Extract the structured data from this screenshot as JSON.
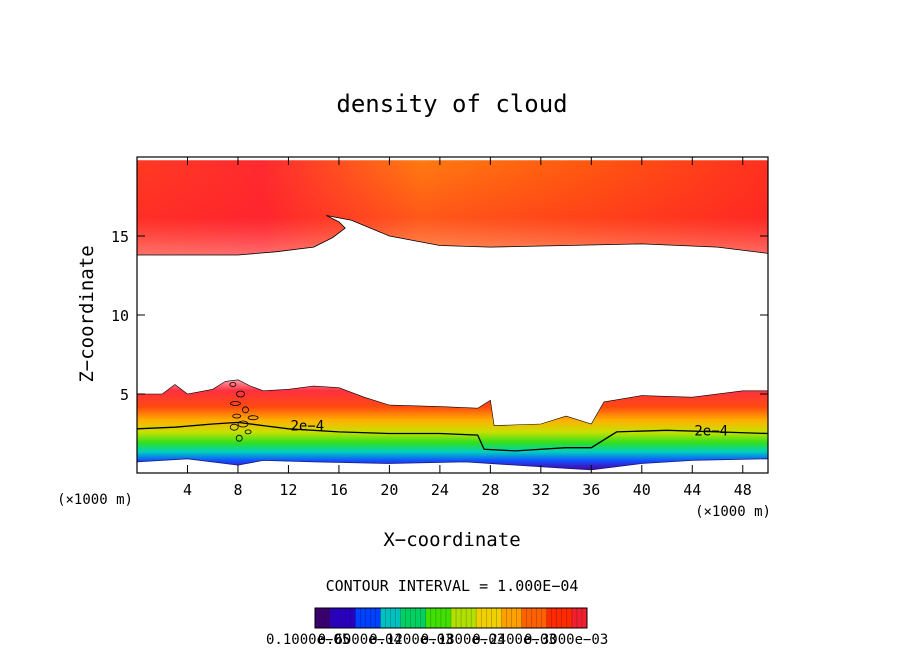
{
  "chart_data": {
    "type": "heatmap",
    "title": "density of cloud",
    "xlabel": "X−coordinate",
    "ylabel": "Z−coordinate",
    "x_unit_left": "(×1000 m)",
    "x_unit_right": "(×1000 m)",
    "xlim": [
      0,
      50
    ],
    "ylim": [
      0,
      20
    ],
    "x_ticks": [
      4,
      8,
      12,
      16,
      20,
      24,
      28,
      32,
      36,
      40,
      44,
      48
    ],
    "y_ticks": [
      5,
      10,
      15
    ],
    "contour_interval_text": "CONTOUR INTERVAL = 1.000E−04",
    "contour_labels": [
      {
        "text": "2e−4",
        "x": 13.5,
        "z": 3.0
      },
      {
        "text": "2e−4",
        "x": 45.5,
        "z": 2.7
      }
    ],
    "upper_layer": {
      "top": [
        [
          0,
          19.8
        ],
        [
          50,
          19.8
        ]
      ],
      "base": [
        [
          0,
          13.8
        ],
        [
          4,
          13.8
        ],
        [
          8,
          13.8
        ],
        [
          11,
          14.0
        ],
        [
          14,
          14.3
        ],
        [
          15.5,
          14.9
        ],
        [
          16.5,
          15.5
        ],
        [
          16,
          15.9
        ],
        [
          15,
          16.3
        ],
        [
          17,
          16.0
        ],
        [
          20,
          15.0
        ],
        [
          24,
          14.4
        ],
        [
          28,
          14.3
        ],
        [
          34,
          14.4
        ],
        [
          40,
          14.5
        ],
        [
          46,
          14.3
        ],
        [
          50,
          13.9
        ]
      ]
    },
    "lower_layer": {
      "top": [
        [
          0,
          5.0
        ],
        [
          2,
          5.0
        ],
        [
          3,
          5.6
        ],
        [
          4,
          5.0
        ],
        [
          6,
          5.3
        ],
        [
          7,
          5.8
        ],
        [
          8,
          5.9
        ],
        [
          9,
          5.5
        ],
        [
          10,
          5.2
        ],
        [
          12,
          5.3
        ],
        [
          14,
          5.5
        ],
        [
          16,
          5.4
        ],
        [
          18,
          4.8
        ],
        [
          20,
          4.3
        ],
        [
          24,
          4.2
        ],
        [
          27,
          4.1
        ],
        [
          28,
          4.6
        ],
        [
          28.3,
          3.0
        ],
        [
          32,
          3.1
        ],
        [
          34,
          3.6
        ],
        [
          36,
          3.1
        ],
        [
          37,
          4.5
        ],
        [
          40,
          4.9
        ],
        [
          44,
          4.8
        ],
        [
          48,
          5.2
        ],
        [
          50,
          5.2
        ]
      ],
      "bottom": [
        [
          0,
          0.7
        ],
        [
          4,
          0.9
        ],
        [
          8,
          0.5
        ],
        [
          10,
          0.8
        ],
        [
          14,
          0.7
        ],
        [
          20,
          0.6
        ],
        [
          26,
          0.7
        ],
        [
          30,
          0.5
        ],
        [
          34,
          0.3
        ],
        [
          36,
          0.2
        ],
        [
          40,
          0.6
        ],
        [
          44,
          0.8
        ],
        [
          50,
          0.9
        ]
      ]
    },
    "contour_2e4_line": [
      [
        0,
        2.8
      ],
      [
        3,
        2.9
      ],
      [
        6,
        3.1
      ],
      [
        8,
        3.2
      ],
      [
        10,
        3.0
      ],
      [
        12,
        2.8
      ],
      [
        16,
        2.6
      ],
      [
        20,
        2.5
      ],
      [
        24,
        2.5
      ],
      [
        27,
        2.4
      ],
      [
        27.5,
        1.5
      ],
      [
        30,
        1.4
      ],
      [
        34,
        1.6
      ],
      [
        36,
        1.6
      ],
      [
        38,
        2.6
      ],
      [
        42,
        2.7
      ],
      [
        46,
        2.6
      ],
      [
        50,
        2.5
      ]
    ],
    "colorbar": {
      "min_label": "0.1000e−05",
      "max_label": "0.3000e−03",
      "tick_labels": [
        "0.1000e−05",
        "0.6000e−04",
        "0.1200e−03",
        "0.1800e−03",
        "0.2400e−03",
        "0.3000e−03"
      ],
      "colors": [
        "#3a0070",
        "#2a00c0",
        "#0040ff",
        "#00c0c0",
        "#00d060",
        "#40e000",
        "#b0e000",
        "#f0d000",
        "#ffa000",
        "#ff6000",
        "#ff2a00",
        "#f02030"
      ]
    },
    "grid": false,
    "legend": "none"
  }
}
